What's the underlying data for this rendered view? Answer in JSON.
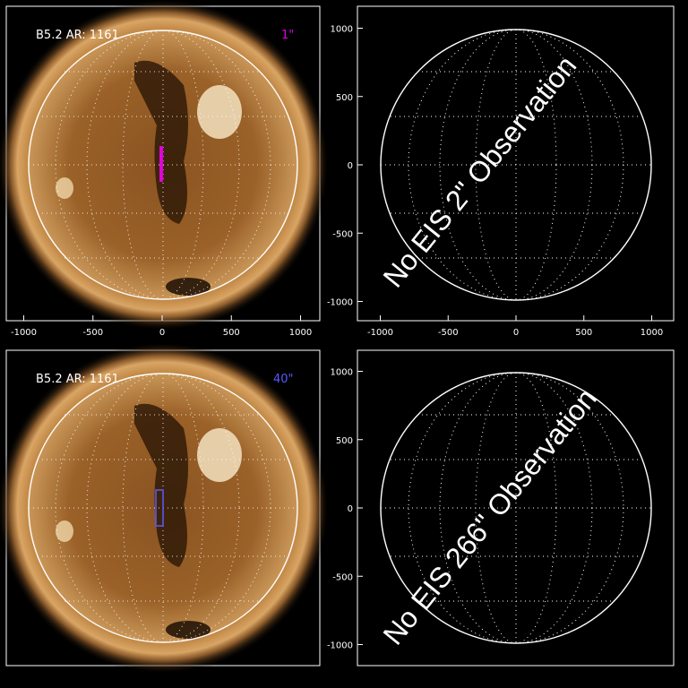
{
  "panels": [
    {
      "id": "top-left",
      "type": "image",
      "info_label": "B5.2 AR: 1161",
      "slit_label": "1\"",
      "slit_color": "#e000e0",
      "slit_width_arcsec": 1,
      "x_ticks": [
        "-1000",
        "-500",
        "0",
        "500",
        "1000"
      ],
      "y_ticks": []
    },
    {
      "id": "top-right",
      "type": "empty",
      "message": "No EIS 2\" Observation",
      "x_ticks": [
        "-1000",
        "-500",
        "0",
        "500",
        "1000"
      ],
      "y_ticks": [
        "1000",
        "500",
        "0",
        "-500",
        "-1000"
      ]
    },
    {
      "id": "bottom-left",
      "type": "image",
      "info_label": "B5.2 AR: 1161",
      "slit_label": "40\"",
      "slit_color": "#5a5aff",
      "slit_width_arcsec": 40,
      "x_ticks": [],
      "y_ticks": []
    },
    {
      "id": "bottom-right",
      "type": "empty",
      "message": "No EIS 266\" Observation",
      "x_ticks": [],
      "y_ticks": [
        "1000",
        "500",
        "0",
        "-500",
        "-1000"
      ]
    }
  ],
  "colors": {
    "sun_core": "#a3682c",
    "sun_limb": "#6e3c12",
    "corona": "#b8894f",
    "grid": "#ffffff"
  }
}
